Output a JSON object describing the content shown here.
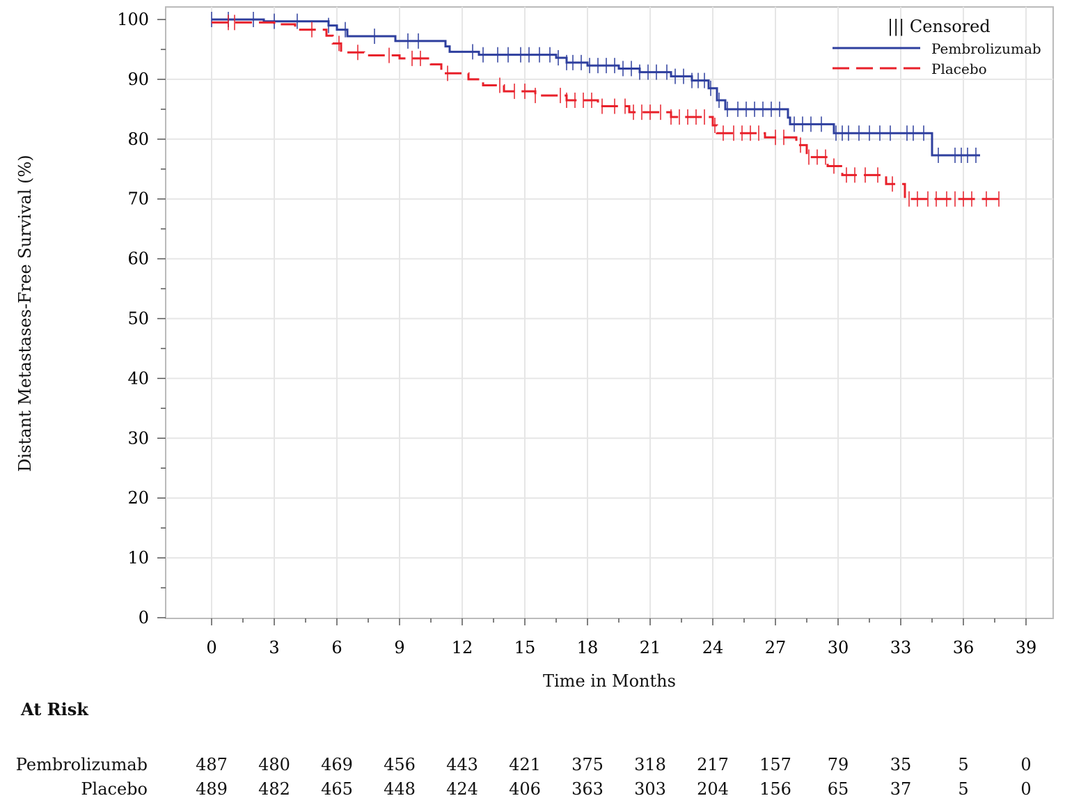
{
  "chart_data": {
    "type": "line",
    "subtype": "kaplan-meier",
    "xlabel": "Time in Months",
    "ylabel": "Distant Metastases-Free Survival (%)",
    "xlim": [
      0,
      39
    ],
    "ylim": [
      0,
      100
    ],
    "xticks": [
      0,
      3,
      6,
      9,
      12,
      15,
      18,
      21,
      24,
      27,
      30,
      33,
      36,
      39
    ],
    "yticks": [
      0,
      10,
      20,
      30,
      40,
      50,
      60,
      70,
      80,
      90,
      100
    ],
    "grid": true,
    "legend": {
      "placement": "top-right",
      "censored_label": "||| Censored"
    },
    "series": [
      {
        "name": "Pembrolizumab",
        "color": "#2e3f9e",
        "dash": false,
        "steps": [
          [
            0,
            100
          ],
          [
            2.5,
            99.7
          ],
          [
            5.6,
            99.0
          ],
          [
            6.0,
            98.3
          ],
          [
            6.5,
            97.2
          ],
          [
            8.8,
            96.4
          ],
          [
            11.2,
            95.5
          ],
          [
            11.4,
            94.6
          ],
          [
            12.8,
            94.1
          ],
          [
            16.5,
            93.6
          ],
          [
            17,
            92.8
          ],
          [
            18,
            92.3
          ],
          [
            19.5,
            91.8
          ],
          [
            20.5,
            91.2
          ],
          [
            22,
            90.5
          ],
          [
            23,
            89.8
          ],
          [
            23.8,
            88.5
          ],
          [
            24.2,
            86.5
          ],
          [
            24.6,
            85
          ],
          [
            27.6,
            83.6
          ],
          [
            27.7,
            82.5
          ],
          [
            29.8,
            81.0
          ],
          [
            34.5,
            77.3
          ]
        ],
        "end": 36.8,
        "censored": [
          0,
          0.8,
          2,
          3,
          4.1,
          5.6,
          6.4,
          7.8,
          9.4,
          9.9,
          12.5,
          13,
          13.7,
          14.2,
          14.8,
          15.2,
          15.7,
          16.2,
          16.6,
          17,
          17.3,
          17.7,
          18.1,
          18.5,
          18.9,
          19.3,
          19.7,
          20.1,
          20.5,
          20.9,
          21.3,
          21.8,
          22.2,
          22.6,
          23,
          23.3,
          23.6,
          23.9,
          24.3,
          24.7,
          25.2,
          25.6,
          26,
          26.4,
          26.8,
          27.2,
          27.9,
          28.3,
          28.7,
          29.2,
          29.9,
          30.2,
          30.5,
          31,
          31.5,
          32,
          32.5,
          33.3,
          33.6,
          34.1,
          34.8,
          35.6,
          35.9,
          36.2,
          36.6
        ]
      },
      {
        "name": "Placebo",
        "color": "#e8202a",
        "dash": true,
        "steps": [
          [
            0,
            99.5
          ],
          [
            3,
            99.2
          ],
          [
            4,
            98.3
          ],
          [
            5.5,
            97.3
          ],
          [
            5.8,
            96
          ],
          [
            6.2,
            94.5
          ],
          [
            7.3,
            94
          ],
          [
            9,
            93.5
          ],
          [
            10.5,
            92.5
          ],
          [
            11,
            91
          ],
          [
            12.3,
            90
          ],
          [
            13,
            89
          ],
          [
            14,
            88
          ],
          [
            15.5,
            87.3
          ],
          [
            17,
            86.5
          ],
          [
            18.5,
            85.5
          ],
          [
            20,
            84.5
          ],
          [
            22,
            83.7
          ],
          [
            24,
            82.3
          ],
          [
            24.2,
            81
          ],
          [
            26.5,
            80.3
          ],
          [
            28,
            79
          ],
          [
            28.5,
            77
          ],
          [
            29.5,
            75.5
          ],
          [
            30.2,
            74
          ],
          [
            32.3,
            72.5
          ],
          [
            33.2,
            70
          ]
        ],
        "end": 37.7,
        "censored": [
          0.8,
          1.1,
          4.8,
          6.1,
          7,
          8.5,
          9.6,
          10,
          11.3,
          13.8,
          14.5,
          15,
          15.5,
          16.7,
          17,
          17.4,
          17.8,
          18.2,
          18.7,
          19.3,
          19.8,
          20.2,
          20.6,
          21,
          21.5,
          22,
          22.4,
          22.8,
          23.2,
          23.6,
          24.1,
          24.5,
          25,
          25.4,
          25.8,
          26.2,
          27,
          27.4,
          28.2,
          28.6,
          29,
          29.4,
          29.8,
          30.4,
          30.8,
          31.3,
          31.9,
          32.6,
          33.4,
          33.8,
          34.3,
          34.7,
          35.2,
          35.6,
          36,
          36.4,
          37.1,
          37.7
        ]
      }
    ]
  },
  "at_risk": {
    "title": "At Risk",
    "times": [
      0,
      3,
      6,
      9,
      12,
      15,
      18,
      21,
      24,
      27,
      30,
      33,
      36,
      39
    ],
    "rows": [
      {
        "label": "Pembrolizumab",
        "values": [
          "487",
          "480",
          "469",
          "456",
          "443",
          "421",
          "375",
          "318",
          "217",
          "157",
          "79",
          "35",
          "5",
          "0"
        ]
      },
      {
        "label": "Placebo",
        "values": [
          "489",
          "482",
          "465",
          "448",
          "424",
          "406",
          "363",
          "303",
          "204",
          "156",
          "65",
          "37",
          "5",
          "0"
        ]
      }
    ]
  }
}
